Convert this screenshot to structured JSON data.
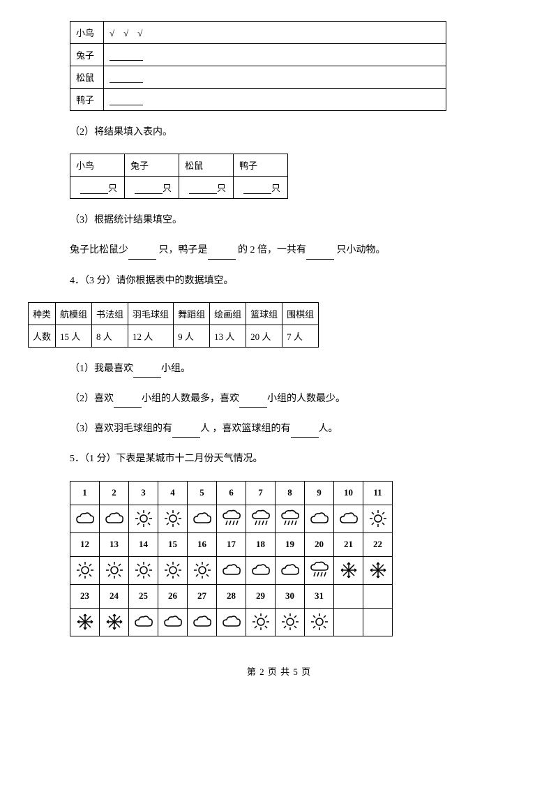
{
  "tally": {
    "rows": [
      {
        "animal": "小鸟",
        "marks": "√　√　√"
      },
      {
        "animal": "兔子",
        "marks": ""
      },
      {
        "animal": "松鼠",
        "marks": ""
      },
      {
        "animal": "鸭子",
        "marks": ""
      }
    ]
  },
  "q2_label": "（2）将结果填入表内。",
  "count_table": {
    "headers": [
      "小鸟",
      "兔子",
      "松鼠",
      "鸭子"
    ],
    "unit": "只"
  },
  "q3_label": "（3）根据统计结果填空。",
  "q3_text_parts": [
    "兔子比松鼠少",
    "只，鸭子是",
    "的 2 倍，一共有",
    "只小动物。"
  ],
  "q4_label": "4．（3 分）请你根据表中的数据填空。",
  "group_table": {
    "header_label": "种类",
    "row_label": "人数",
    "columns": [
      "航模组",
      "书法组",
      "羽毛球组",
      "舞蹈组",
      "绘画组",
      "篮球组",
      "围棋组"
    ],
    "counts": [
      "15 人",
      "8 人",
      "12 人",
      "9 人",
      "13 人",
      "20 人",
      "7 人"
    ]
  },
  "q4_sub1": [
    "（1）我最喜欢",
    "小组。"
  ],
  "q4_sub2": [
    "（2）喜欢",
    "小组的人数最多，喜欢",
    "小组的人数最少。"
  ],
  "q4_sub3": [
    "（3）喜欢羽毛球组的有",
    "人 ，喜欢篮球组的有",
    "人。"
  ],
  "q5_label": "5．（1 分）下表是某城市十二月份天气情况。",
  "weather": {
    "days": [
      [
        "1",
        "2",
        "3",
        "4",
        "5",
        "6",
        "7",
        "8",
        "9",
        "10",
        "11"
      ],
      [
        "12",
        "13",
        "14",
        "15",
        "16",
        "17",
        "18",
        "19",
        "20",
        "21",
        "22"
      ],
      [
        "23",
        "24",
        "25",
        "26",
        "27",
        "28",
        "29",
        "30",
        "31",
        "",
        ""
      ]
    ],
    "icons": [
      [
        "cloudy",
        "cloudy",
        "sunny",
        "sunny",
        "cloudy",
        "rain",
        "rain",
        "rain",
        "cloudy",
        "cloudy",
        "sunny"
      ],
      [
        "sunny",
        "sunny",
        "sunny",
        "sunny",
        "sunny",
        "cloudy",
        "cloudy",
        "cloudy",
        "rain",
        "snow",
        "snow"
      ],
      [
        "snow",
        "snow",
        "cloudy",
        "cloudy",
        "cloudy",
        "cloudy",
        "sunny",
        "sunny",
        "sunny",
        "",
        ""
      ]
    ]
  },
  "footer_parts": [
    "第 ",
    "2",
    " 页 共 ",
    "5",
    " 页"
  ]
}
